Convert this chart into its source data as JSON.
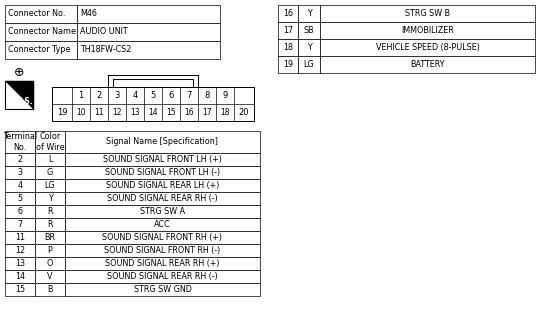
{
  "connector_info": [
    [
      "Connector No.",
      "M46"
    ],
    [
      "Connector Name",
      "AUDIO UNIT"
    ],
    [
      "Connector Type",
      "TH18FW-CS2"
    ]
  ],
  "right_table": [
    [
      "16",
      "Y",
      "STRG SW B"
    ],
    [
      "17",
      "SB",
      "IMMOBILIZER"
    ],
    [
      "18",
      "Y",
      "VEHICLE SPEED (8-PULSE)"
    ],
    [
      "19",
      "LG",
      "BATTERY"
    ]
  ],
  "main_table": [
    [
      "2",
      "L",
      "SOUND SIGNAL FRONT LH (+)"
    ],
    [
      "3",
      "G",
      "SOUND SIGNAL FRONT LH (-)"
    ],
    [
      "4",
      "LG",
      "SOUND SIGNAL REAR LH (+)"
    ],
    [
      "5",
      "Y",
      "SOUND SIGNAL REAR RH (-)"
    ],
    [
      "6",
      "R",
      "STRG SW A"
    ],
    [
      "7",
      "R",
      "ACC"
    ],
    [
      "11",
      "BR",
      "SOUND SIGNAL FRONT RH (+)"
    ],
    [
      "12",
      "P",
      "SOUND SIGNAL FRONT RH (-)"
    ],
    [
      "13",
      "O",
      "SOUND SIGNAL REAR RH (+)"
    ],
    [
      "14",
      "V",
      "SOUND SIGNAL REAR RH (-)"
    ],
    [
      "15",
      "B",
      "STRG SW GND"
    ]
  ],
  "main_table_headers": [
    "Terminal\nNo.",
    "Color\nof Wire",
    "Signal Name [Specification]"
  ],
  "connector_pins_top": [
    "1",
    "2",
    "3",
    "4",
    "5",
    "6",
    "7",
    "8",
    "9"
  ],
  "connector_pins_bottom": [
    "10",
    "11",
    "12",
    "13",
    "14",
    "15",
    "16",
    "17",
    "18"
  ],
  "bg_color": "#ffffff",
  "line_color": "#000000",
  "text_color": "#000000"
}
